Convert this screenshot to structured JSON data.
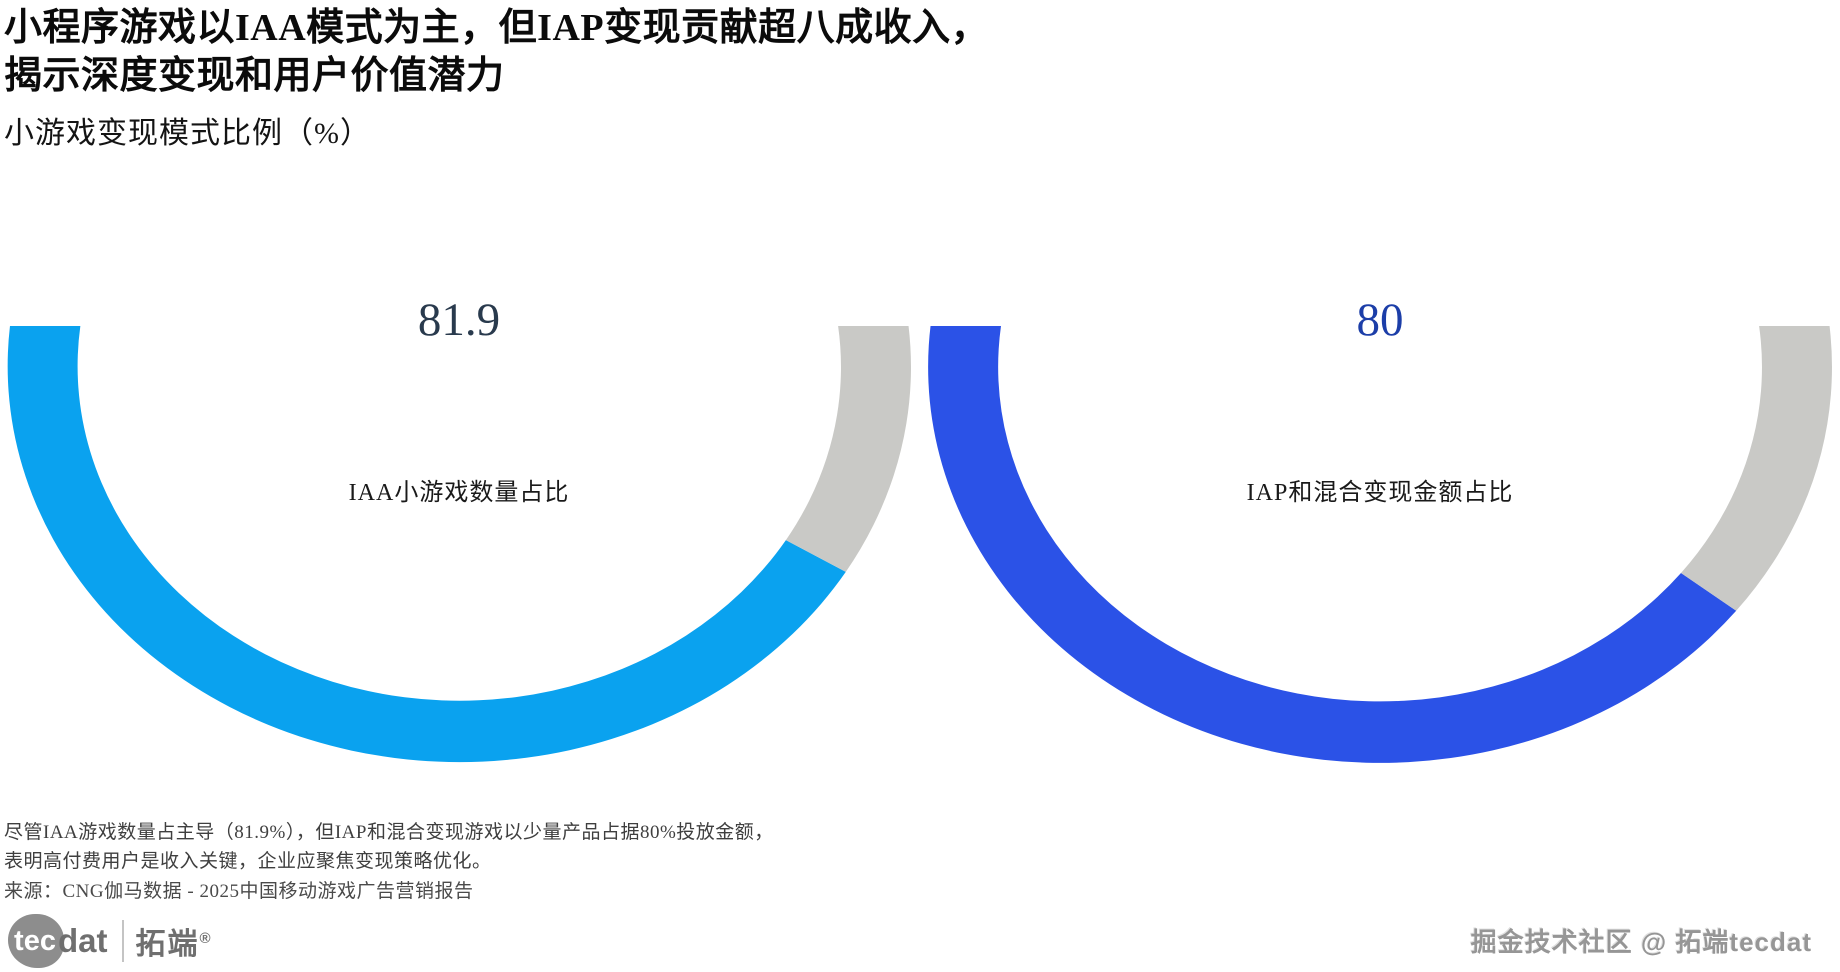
{
  "title": {
    "line1": "小程序游戏以IAA模式为主，但IAP变现贡献超八成收入，",
    "line2": "揭示深度变现和用户价值潜力"
  },
  "subtitle": "小游戏变现模式比例（%）",
  "chart_data": {
    "type": "pie",
    "variant": "pair-of-clipped-donut-gauges",
    "unit": "%",
    "start_angle_deg": 34,
    "categories": [
      "IAA小游戏数量占比",
      "IAP和混合变现金额占比"
    ],
    "values": [
      81.9,
      80
    ],
    "gauges": [
      {
        "value": 81.9,
        "value_label": "81.9",
        "label": "IAA小游戏数量占比",
        "color": "#0aa2ef",
        "rest_color": "#c9c9c6",
        "value_color": "#293a4d"
      },
      {
        "value": 80,
        "value_label": "80",
        "label": "IAP和混合变现金额占比",
        "color": "#2b52e7",
        "rest_color": "#c9c9c6",
        "value_color": "#1c3ea8"
      }
    ]
  },
  "notes": {
    "line1": "尽管IAA游戏数量占主导（81.9%），但IAP和混合变现游戏以少量产品占据80%投放金额，",
    "line2": "表明高付费用户是收入关键，企业应聚焦变现策略优化。"
  },
  "source": "来源：CNG伽马数据 - 2025中国移动游戏广告营销报告",
  "branding": {
    "logo_tec": "tec",
    "logo_dat": "dat",
    "logo_cn": "拓端",
    "logo_reg": "®",
    "watermark": "掘金技术社区 @ 拓端tecdat"
  }
}
